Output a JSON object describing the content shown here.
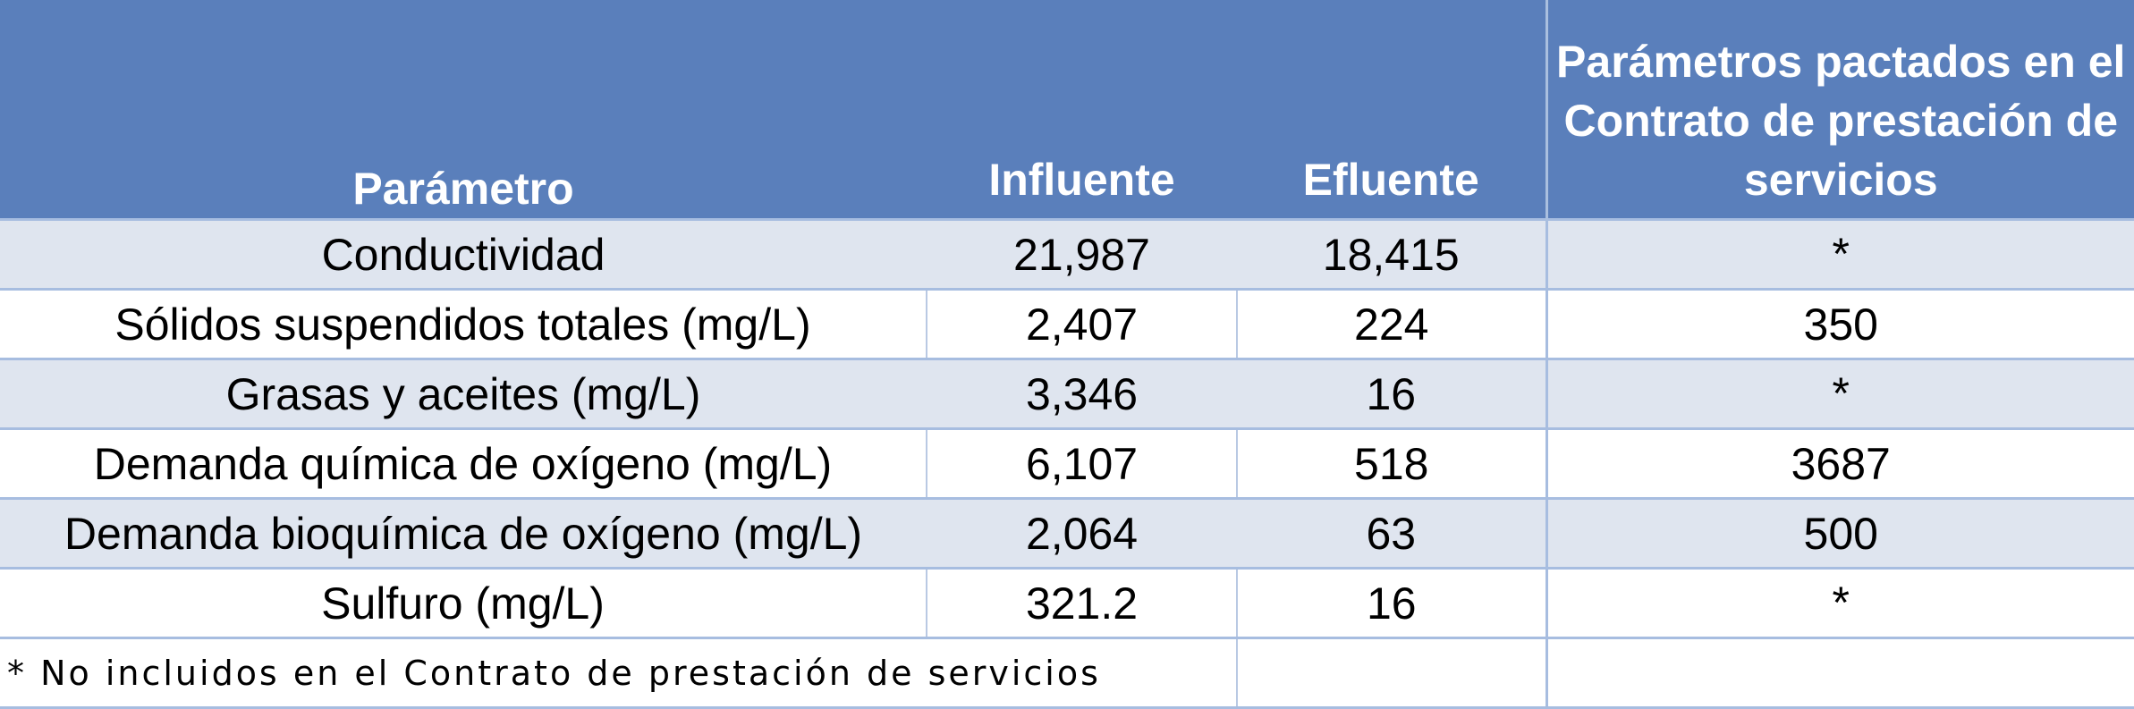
{
  "table": {
    "headers": [
      "Parámetro",
      "Influente",
      "Efluente",
      "Parámetros pactados en el Contrato de prestación de servicios"
    ],
    "rows": [
      {
        "parametro": "Conductividad",
        "influente": "21,987",
        "efluente": "18,415",
        "pactado": "*"
      },
      {
        "parametro": "Sólidos suspendidos totales (mg/L)",
        "influente": "2,407",
        "efluente": "224",
        "pactado": "350"
      },
      {
        "parametro": "Grasas y aceites (mg/L)",
        "influente": "3,346",
        "efluente": "16",
        "pactado": "*"
      },
      {
        "parametro": "Demanda química de oxígeno (mg/L)",
        "influente": "6,107",
        "efluente": "518",
        "pactado": "3687"
      },
      {
        "parametro": "Demanda bioquímica de oxígeno (mg/L)",
        "influente": "2,064",
        "efluente": "63",
        "pactado": "500"
      },
      {
        "parametro": "Sulfuro (mg/L)",
        "influente": "321.2",
        "efluente": "16",
        "pactado": "*"
      }
    ],
    "footnote": "* No incluidos en el Contrato de prestación de servicios"
  },
  "colors": {
    "header_bg": "#5a7fbb",
    "header_text": "#ffffff",
    "row_shaded": "#dfe5ef",
    "row_plain": "#ffffff",
    "grid_line": "#a7bde0"
  }
}
